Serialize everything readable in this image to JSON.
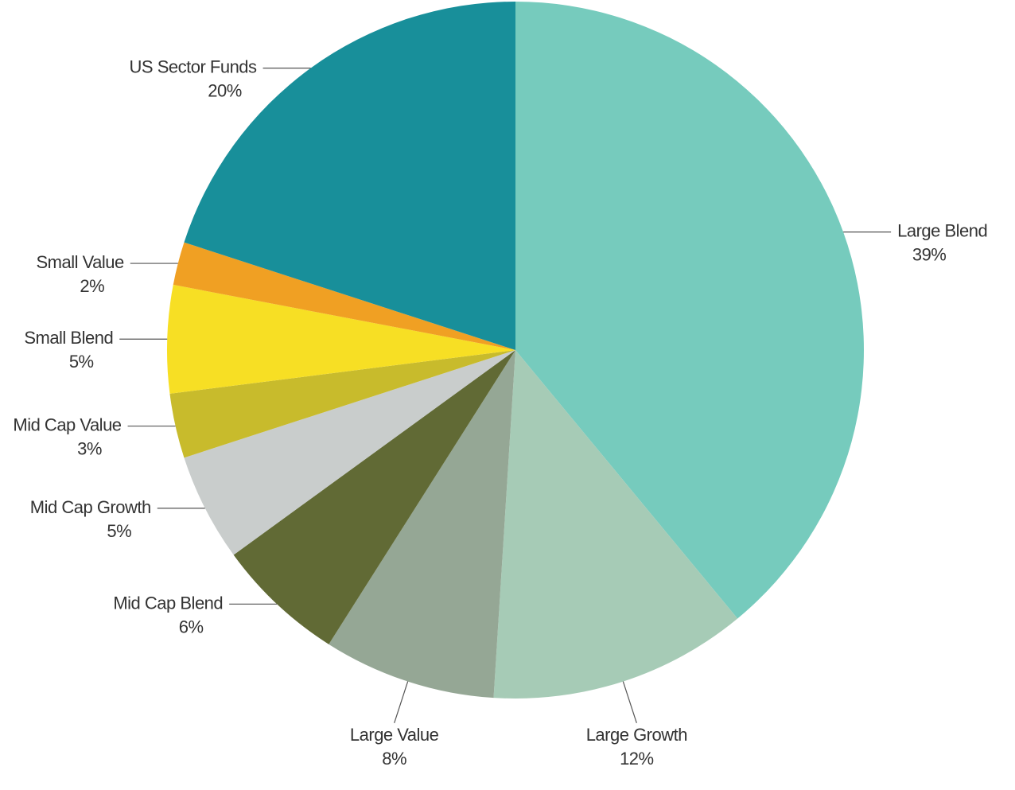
{
  "chart_data": {
    "type": "pie",
    "categories": [
      "Large Blend",
      "Large Growth",
      "Large Value",
      "Mid Cap Blend",
      "Mid Cap Growth",
      "Mid Cap Value",
      "Small Blend",
      "Small Value",
      "US Sector Funds"
    ],
    "values": [
      39,
      12,
      8,
      6,
      5,
      3,
      5,
      2,
      20
    ],
    "value_labels": [
      "39%",
      "12%",
      "8%",
      "6%",
      "5%",
      "3%",
      "5%",
      "2%",
      "20%"
    ],
    "colors": [
      "#76cbbd",
      "#a6cbb6",
      "#95a795",
      "#616a35",
      "#c9cdcc",
      "#c8bb2c",
      "#f7df24",
      "#f0a023",
      "#188f9a"
    ]
  }
}
